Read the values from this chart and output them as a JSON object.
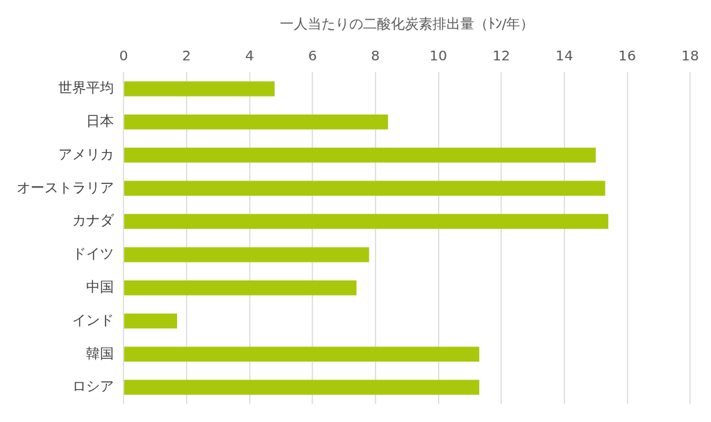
{
  "chart_data": {
    "type": "bar",
    "orientation": "horizontal",
    "xlabel": "一人当たりの二酸化炭素排出量（ﾄﾝ/年）",
    "categories": [
      "世界平均",
      "日本",
      "アメリカ",
      "オーストラリア",
      "カナダ",
      "ドイツ",
      "中国",
      "インド",
      "韓国",
      "ロシア"
    ],
    "values": [
      4.8,
      8.4,
      15.0,
      15.3,
      15.4,
      7.8,
      7.4,
      1.7,
      11.3,
      11.3
    ],
    "color": "#a9c80c",
    "xlim": [
      0,
      18
    ],
    "xticks": [
      0,
      2,
      4,
      6,
      8,
      10,
      12,
      14,
      16,
      18
    ],
    "grid": "x"
  }
}
